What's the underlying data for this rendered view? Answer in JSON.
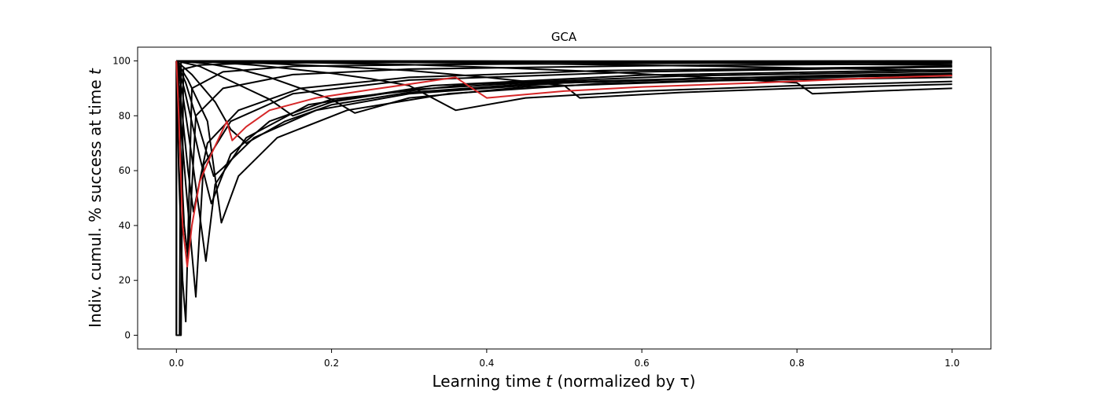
{
  "chart_data": {
    "type": "line",
    "title": "GCA",
    "xlabel": {
      "pre": "Learning time ",
      "var": "t",
      "post": " (normalized by  τ)"
    },
    "ylabel": {
      "pre": "Indiv. cumul. % success at time ",
      "var": "t"
    },
    "xlim": [
      -0.05,
      1.05
    ],
    "ylim": [
      -5,
      105
    ],
    "x_ticks": [
      0.0,
      0.2,
      0.4,
      0.6,
      0.8,
      1.0
    ],
    "x_tick_labels": [
      "0.0",
      "0.2",
      "0.4",
      "0.6",
      "0.8",
      "1.0"
    ],
    "y_ticks": [
      0,
      20,
      40,
      60,
      80,
      100
    ],
    "y_tick_labels": [
      "0",
      "20",
      "40",
      "60",
      "80",
      "100"
    ],
    "grid": false,
    "legend": "none",
    "colors": {
      "default": "#000000",
      "highlight": "#d62728"
    },
    "series": [
      {
        "color": "#000000",
        "points": [
          [
            0.0,
            100
          ],
          [
            0.0,
            0
          ],
          [
            0.004,
            0
          ],
          [
            0.006,
            99.5
          ],
          [
            0.05,
            99.8
          ],
          [
            0.2,
            99.9
          ],
          [
            0.5,
            99.9
          ],
          [
            1.0,
            100
          ]
        ]
      },
      {
        "color": "#000000",
        "points": [
          [
            0.0,
            100
          ],
          [
            0.0,
            0
          ],
          [
            0.006,
            0
          ],
          [
            0.009,
            97
          ],
          [
            0.03,
            98.5
          ],
          [
            0.1,
            99.2
          ],
          [
            0.3,
            99.5
          ],
          [
            0.6,
            99.6
          ],
          [
            1.0,
            99.7
          ]
        ]
      },
      {
        "color": "#000000",
        "points": [
          [
            0.0,
            100
          ],
          [
            0.003,
            60
          ],
          [
            0.008,
            20
          ],
          [
            0.012,
            5
          ],
          [
            0.02,
            90
          ],
          [
            0.06,
            96
          ],
          [
            0.15,
            98
          ],
          [
            0.35,
            98.7
          ],
          [
            0.7,
            99.2
          ],
          [
            1.0,
            99.4
          ]
        ]
      },
      {
        "color": "#000000",
        "points": [
          [
            0.0,
            100
          ],
          [
            0.005,
            70
          ],
          [
            0.01,
            40
          ],
          [
            0.015,
            28
          ],
          [
            0.025,
            80
          ],
          [
            0.06,
            90
          ],
          [
            0.15,
            95
          ],
          [
            0.3,
            97
          ],
          [
            0.6,
            98.2
          ],
          [
            1.0,
            99
          ]
        ]
      },
      {
        "color": "#000000",
        "points": [
          [
            0.0,
            100
          ],
          [
            0.005,
            80
          ],
          [
            0.012,
            55
          ],
          [
            0.025,
            14
          ],
          [
            0.035,
            62
          ],
          [
            0.07,
            78
          ],
          [
            0.15,
            88
          ],
          [
            0.3,
            93
          ],
          [
            0.6,
            96
          ],
          [
            1.0,
            97.8
          ]
        ]
      },
      {
        "color": "#000000",
        "points": [
          [
            0.0,
            100
          ],
          [
            0.006,
            85
          ],
          [
            0.015,
            60
          ],
          [
            0.022,
            45
          ],
          [
            0.04,
            70
          ],
          [
            0.08,
            82
          ],
          [
            0.16,
            90
          ],
          [
            0.3,
            94
          ],
          [
            0.55,
            96.5
          ],
          [
            1.0,
            98
          ]
        ]
      },
      {
        "color": "#000000",
        "points": [
          [
            0.0,
            100
          ],
          [
            0.008,
            88
          ],
          [
            0.02,
            65
          ],
          [
            0.038,
            27
          ],
          [
            0.05,
            55
          ],
          [
            0.09,
            72
          ],
          [
            0.17,
            84
          ],
          [
            0.33,
            91
          ],
          [
            0.6,
            94.8
          ],
          [
            1.0,
            96.8
          ]
        ]
      },
      {
        "color": "#000000",
        "points": [
          [
            0.0,
            100
          ],
          [
            0.01,
            90
          ],
          [
            0.03,
            65
          ],
          [
            0.045,
            48
          ],
          [
            0.07,
            66
          ],
          [
            0.12,
            78
          ],
          [
            0.2,
            86
          ],
          [
            0.38,
            91.5
          ],
          [
            0.65,
            94.5
          ],
          [
            1.0,
            96.2
          ]
        ]
      },
      {
        "color": "#000000",
        "points": [
          [
            0.0,
            100
          ],
          [
            0.012,
            92
          ],
          [
            0.03,
            75
          ],
          [
            0.048,
            58
          ],
          [
            0.06,
            61
          ],
          [
            0.1,
            72
          ],
          [
            0.18,
            82
          ],
          [
            0.3,
            88
          ],
          [
            0.5,
            92
          ],
          [
            0.8,
            94.5
          ],
          [
            1.0,
            95.5
          ]
        ]
      },
      {
        "color": "#000000",
        "points": [
          [
            0.0,
            100
          ],
          [
            0.015,
            93
          ],
          [
            0.04,
            78
          ],
          [
            0.058,
            41
          ],
          [
            0.08,
            58
          ],
          [
            0.13,
            72
          ],
          [
            0.22,
            82
          ],
          [
            0.35,
            88
          ],
          [
            0.55,
            91.8
          ],
          [
            0.8,
            93.8
          ],
          [
            1.0,
            95
          ]
        ]
      },
      {
        "color": "#000000",
        "points": [
          [
            0.0,
            100
          ],
          [
            0.02,
            95
          ],
          [
            0.05,
            85
          ],
          [
            0.07,
            75
          ],
          [
            0.09,
            70
          ],
          [
            0.14,
            78
          ],
          [
            0.2,
            84
          ],
          [
            0.3,
            88.5
          ],
          [
            0.45,
            91.5
          ],
          [
            0.7,
            93.8
          ],
          [
            1.0,
            95
          ]
        ]
      },
      {
        "color": "#000000",
        "points": [
          [
            0.0,
            100
          ],
          [
            0.03,
            98
          ],
          [
            0.06,
            94
          ],
          [
            0.09,
            90
          ],
          [
            0.12,
            86
          ],
          [
            0.15,
            80
          ],
          [
            0.2,
            85
          ],
          [
            0.3,
            89.5
          ],
          [
            0.45,
            92
          ],
          [
            0.7,
            93.8
          ],
          [
            1.0,
            94.8
          ]
        ]
      },
      {
        "color": "#000000",
        "points": [
          [
            0.0,
            100
          ],
          [
            0.04,
            99
          ],
          [
            0.08,
            97
          ],
          [
            0.12,
            94
          ],
          [
            0.16,
            90
          ],
          [
            0.2,
            86
          ],
          [
            0.23,
            81
          ],
          [
            0.3,
            86.5
          ],
          [
            0.45,
            90.5
          ],
          [
            0.7,
            92.8
          ],
          [
            1.0,
            94
          ]
        ]
      },
      {
        "color": "#000000",
        "points": [
          [
            0.0,
            100
          ],
          [
            0.05,
            99.5
          ],
          [
            0.1,
            98.5
          ],
          [
            0.15,
            97
          ],
          [
            0.2,
            95.5
          ],
          [
            0.25,
            93.5
          ],
          [
            0.3,
            91
          ],
          [
            0.36,
            82
          ],
          [
            0.45,
            86.5
          ],
          [
            0.6,
            89
          ],
          [
            0.8,
            91
          ],
          [
            1.0,
            92.5
          ]
        ]
      },
      {
        "color": "#000000",
        "points": [
          [
            0.0,
            100
          ],
          [
            0.06,
            99.7
          ],
          [
            0.12,
            99
          ],
          [
            0.2,
            98
          ],
          [
            0.3,
            96.5
          ],
          [
            0.4,
            94
          ],
          [
            0.5,
            91
          ],
          [
            0.52,
            86.5
          ],
          [
            0.65,
            88.5
          ],
          [
            0.8,
            90
          ],
          [
            1.0,
            91.5
          ]
        ]
      },
      {
        "color": "#000000",
        "points": [
          [
            0.0,
            100
          ],
          [
            0.08,
            99.8
          ],
          [
            0.18,
            99.3
          ],
          [
            0.3,
            98.6
          ],
          [
            0.42,
            97.5
          ],
          [
            0.55,
            96
          ],
          [
            0.68,
            94
          ],
          [
            0.8,
            92
          ],
          [
            0.82,
            88
          ],
          [
            0.9,
            89
          ],
          [
            1.0,
            90
          ]
        ]
      },
      {
        "color": "#000000",
        "points": [
          [
            0.0,
            100
          ],
          [
            0.1,
            99.9
          ],
          [
            0.25,
            99.6
          ],
          [
            0.4,
            99.2
          ],
          [
            0.55,
            98.6
          ],
          [
            0.7,
            98
          ],
          [
            0.85,
            97.2
          ],
          [
            1.0,
            96.5
          ]
        ]
      },
      {
        "color": "#000000",
        "points": [
          [
            0.0,
            100
          ],
          [
            0.12,
            99.95
          ],
          [
            0.3,
            99.8
          ],
          [
            0.5,
            99.5
          ],
          [
            0.7,
            99.2
          ],
          [
            0.85,
            98.8
          ],
          [
            1.0,
            98.4
          ]
        ]
      },
      {
        "color": "#000000",
        "points": [
          [
            0.0,
            100
          ],
          [
            0.15,
            100
          ],
          [
            0.4,
            99.9
          ],
          [
            0.7,
            99.7
          ],
          [
            1.0,
            99.5
          ]
        ]
      },
      {
        "color": "#d62728",
        "points": [
          [
            0.0,
            100
          ],
          [
            0.003,
            80
          ],
          [
            0.008,
            40
          ],
          [
            0.014,
            25
          ],
          [
            0.02,
            40
          ],
          [
            0.03,
            56
          ],
          [
            0.045,
            66
          ],
          [
            0.065,
            78
          ],
          [
            0.072,
            71
          ],
          [
            0.09,
            76
          ],
          [
            0.12,
            82
          ],
          [
            0.18,
            86.5
          ],
          [
            0.25,
            89.5
          ],
          [
            0.3,
            91.5
          ],
          [
            0.36,
            94
          ],
          [
            0.4,
            86.5
          ],
          [
            0.5,
            89
          ],
          [
            0.6,
            90.5
          ],
          [
            0.75,
            92
          ],
          [
            0.9,
            93.8
          ],
          [
            1.0,
            94.7
          ]
        ]
      }
    ]
  }
}
